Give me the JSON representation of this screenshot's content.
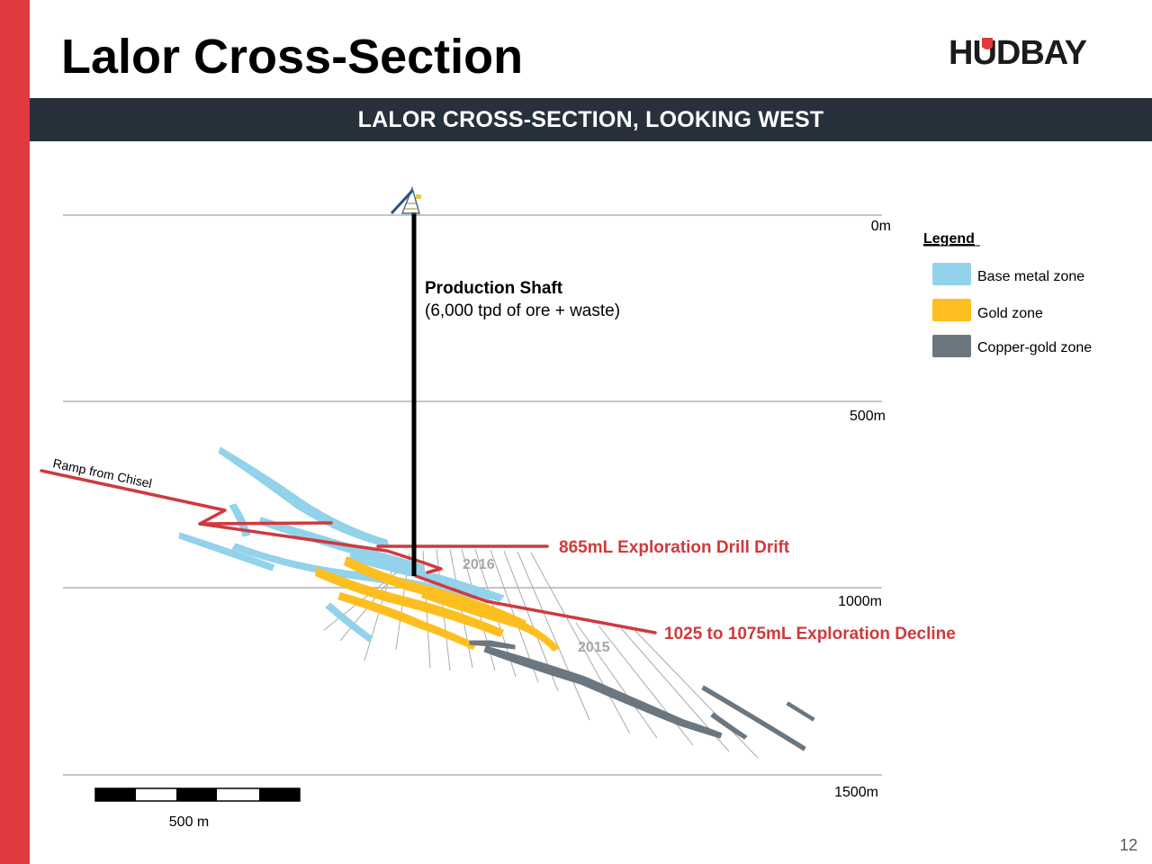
{
  "slide": {
    "title": "Lalor Cross-Section",
    "banner": "LALOR CROSS-SECTION, LOOKING WEST",
    "logo_text": "HUDBAY",
    "page_number": "12"
  },
  "colors": {
    "accent_red": "#e03a3e",
    "banner_bg": "#26313c",
    "base_metal": "#92d2ea",
    "gold": "#fdbf1f",
    "copper_gold": "#6b7780",
    "infrastructure": "#d0393d"
  },
  "depth_levels": [
    {
      "label": "0m"
    },
    {
      "label": "500m"
    },
    {
      "label": "1000m"
    },
    {
      "label": "1500m"
    }
  ],
  "legend": {
    "title": "Legend",
    "items": [
      {
        "label": "Base metal zone",
        "color": "#92d2ea"
      },
      {
        "label": "Gold zone",
        "color": "#fdbf1f"
      },
      {
        "label": "Copper-gold zone",
        "color": "#6b7780"
      }
    ]
  },
  "shaft": {
    "title": "Production Shaft",
    "subtitle": "(6,000 tpd of ore + waste)"
  },
  "annotations": {
    "ramp": "Ramp from Chisel",
    "drift": "865mL Exploration Drill Drift",
    "decline": "1025 to 1075mL Exploration Decline",
    "year_2016": "2016",
    "year_2015": "2015"
  },
  "scale_bar": {
    "label": "500 m"
  }
}
